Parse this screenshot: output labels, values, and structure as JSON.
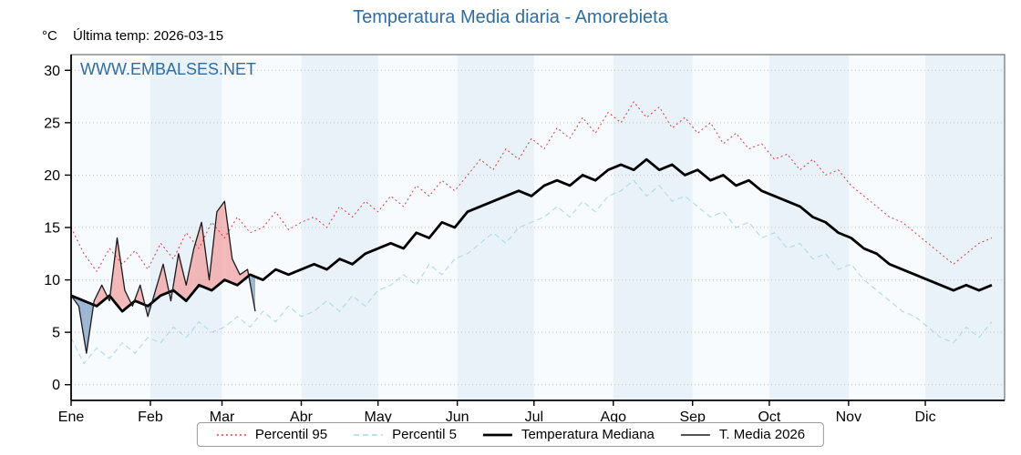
{
  "chart_data": {
    "type": "line",
    "title": "Temperatura Media diaria - Amorebieta",
    "subtitle": "Última temp: 2026-03-15",
    "ylabel": "°C",
    "watermark": "WWW.EMBALSES.NET",
    "accent_color": "#2d6da5",
    "xlim": [
      1,
      366
    ],
    "ylim": [
      -1.5,
      31.5
    ],
    "yticks": [
      0,
      5,
      10,
      15,
      20,
      25,
      30
    ],
    "month_labels": [
      "Ene",
      "Feb",
      "Mar",
      "Abr",
      "May",
      "Jun",
      "Jul",
      "Ago",
      "Sep",
      "Oct",
      "Nov",
      "Dic"
    ],
    "month_starts": [
      1,
      32,
      60,
      91,
      121,
      152,
      182,
      213,
      244,
      274,
      305,
      335
    ],
    "grid": "horizontal-dotted",
    "legend_position": "bottom-center",
    "x_days": [
      1,
      6,
      11,
      16,
      21,
      26,
      31,
      36,
      41,
      46,
      51,
      56,
      61,
      66,
      71,
      76,
      81,
      86,
      91,
      96,
      101,
      106,
      111,
      116,
      121,
      126,
      131,
      136,
      141,
      146,
      151,
      156,
      161,
      166,
      171,
      176,
      181,
      186,
      191,
      196,
      201,
      206,
      211,
      216,
      221,
      226,
      231,
      236,
      241,
      246,
      251,
      256,
      261,
      266,
      271,
      276,
      281,
      286,
      291,
      296,
      301,
      306,
      311,
      316,
      321,
      326,
      331,
      336,
      341,
      346,
      351,
      356,
      361
    ],
    "series": [
      {
        "name": "Percentil 95",
        "color": "#dd3c3c",
        "style": "dotted",
        "line_width": 1,
        "values": [
          15.0,
          12.5,
          10.8,
          13.0,
          11.5,
          12.8,
          11.0,
          13.5,
          12.0,
          14.5,
          13.0,
          15.5,
          14.0,
          16.0,
          14.5,
          15.0,
          16.5,
          14.8,
          15.5,
          16.0,
          15.0,
          17.0,
          16.0,
          17.5,
          16.5,
          18.0,
          17.0,
          19.0,
          18.0,
          19.5,
          18.5,
          20.0,
          21.5,
          20.5,
          22.5,
          21.5,
          23.5,
          22.5,
          24.5,
          23.5,
          25.5,
          24.0,
          26.0,
          25.0,
          27.0,
          25.5,
          26.5,
          24.5,
          25.5,
          24.0,
          25.0,
          23.0,
          24.0,
          22.5,
          23.0,
          21.5,
          22.0,
          20.5,
          21.5,
          20.0,
          20.5,
          19.0,
          18.0,
          17.0,
          16.0,
          15.5,
          14.5,
          13.5,
          12.5,
          11.5,
          12.5,
          13.5,
          14.0
        ]
      },
      {
        "name": "Percentil 5",
        "color": "#a6d6e8",
        "style": "dashed",
        "line_width": 1,
        "values": [
          4.5,
          2.0,
          3.5,
          2.5,
          4.0,
          3.0,
          4.5,
          4.0,
          5.5,
          4.5,
          6.0,
          5.0,
          5.5,
          6.5,
          5.5,
          7.0,
          6.0,
          7.5,
          6.5,
          7.0,
          8.0,
          7.0,
          8.5,
          7.5,
          9.0,
          9.5,
          10.5,
          9.5,
          11.5,
          10.5,
          12.0,
          12.5,
          13.5,
          14.5,
          13.5,
          15.0,
          15.5,
          16.0,
          17.0,
          16.0,
          17.5,
          16.5,
          18.0,
          18.5,
          19.5,
          18.0,
          19.0,
          17.5,
          18.0,
          17.0,
          16.0,
          16.5,
          15.0,
          15.5,
          14.0,
          14.5,
          13.0,
          13.5,
          12.0,
          12.5,
          11.0,
          11.5,
          10.0,
          9.0,
          8.0,
          7.0,
          6.5,
          5.5,
          4.5,
          4.0,
          5.5,
          4.5,
          6.0
        ]
      },
      {
        "name": "Temperatura Mediana",
        "color": "#000000",
        "style": "solid",
        "line_width": 2.8,
        "values": [
          8.5,
          8.0,
          7.5,
          8.5,
          7.0,
          8.0,
          7.5,
          8.5,
          9.0,
          8.0,
          9.5,
          9.0,
          10.0,
          9.5,
          10.5,
          10.0,
          11.0,
          10.5,
          11.0,
          11.5,
          11.0,
          12.0,
          11.5,
          12.5,
          13.0,
          13.5,
          13.0,
          14.5,
          14.0,
          15.5,
          15.0,
          16.5,
          17.0,
          17.5,
          18.0,
          18.5,
          18.0,
          19.0,
          19.5,
          19.0,
          20.0,
          19.5,
          20.5,
          21.0,
          20.5,
          21.5,
          20.5,
          21.0,
          20.0,
          20.5,
          19.5,
          20.0,
          19.0,
          19.5,
          18.5,
          18.0,
          17.5,
          17.0,
          16.0,
          15.5,
          14.5,
          14.0,
          13.0,
          12.5,
          11.5,
          11.0,
          10.5,
          10.0,
          9.5,
          9.0,
          9.5,
          9.0,
          9.5
        ]
      },
      {
        "name": "T. Media 2026",
        "color": "#1a1a1a",
        "style": "solid",
        "line_width": 1.3,
        "fill_above_color": "#f2a1a1",
        "fill_below_color": "#7e9fc4",
        "x": [
          1,
          4,
          7,
          10,
          13,
          16,
          19,
          22,
          25,
          28,
          31,
          34,
          37,
          40,
          43,
          46,
          49,
          52,
          55,
          58,
          61,
          64,
          67,
          70,
          73
        ],
        "values": [
          8.5,
          7.5,
          3.0,
          8.0,
          9.5,
          8.0,
          14.0,
          9.0,
          7.5,
          9.5,
          6.5,
          9.0,
          11.5,
          8.0,
          12.5,
          9.5,
          13.0,
          15.5,
          10.0,
          16.5,
          17.5,
          12.0,
          10.5,
          11.0,
          7.0
        ]
      }
    ]
  }
}
